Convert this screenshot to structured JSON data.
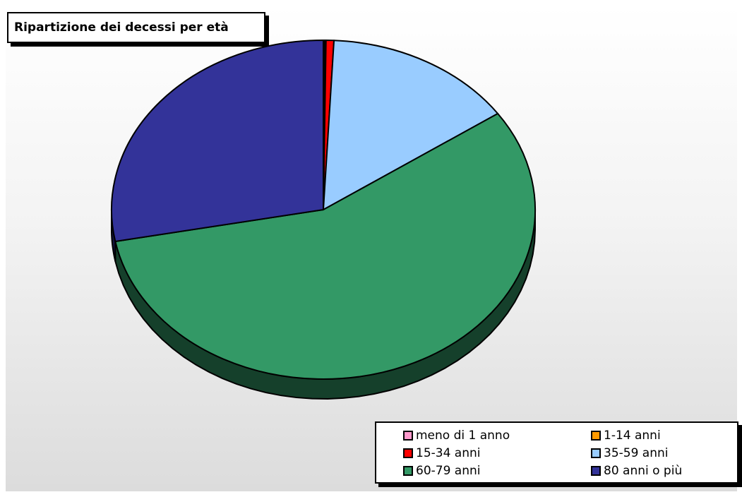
{
  "chart_data": {
    "type": "pie",
    "title": "Ripartizione dei decessi per età",
    "categories": [
      "meno di 1 anno",
      "1-14 anni",
      "15-34 anni",
      "35-59 anni",
      "60-79 anni",
      "80 anni o più"
    ],
    "values": [
      0.1,
      0.1,
      0.6,
      14.6,
      56.6,
      28.0
    ],
    "unit": "",
    "colors": [
      "#ff99cc",
      "#ff9900",
      "#ff0000",
      "#99ccff",
      "#339966",
      "#333399"
    ],
    "three_d": true,
    "legend_position": "bottom-right"
  }
}
